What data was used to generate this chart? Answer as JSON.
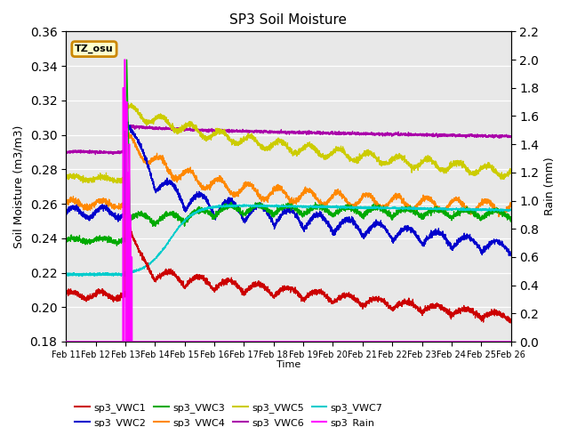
{
  "title": "SP3 Soil Moisture",
  "xlabel": "Time",
  "ylabel_left": "Soil Moisture (m3/m3)",
  "ylabel_right": "Rain (mm)",
  "ylim_left": [
    0.18,
    0.36
  ],
  "ylim_right": [
    0.0,
    2.2
  ],
  "yticks_left": [
    0.18,
    0.2,
    0.22,
    0.24,
    0.26,
    0.28,
    0.3,
    0.32,
    0.34,
    0.36
  ],
  "yticks_right": [
    0.0,
    0.2,
    0.4,
    0.6,
    0.8,
    1.0,
    1.2,
    1.4,
    1.6,
    1.8,
    2.0,
    2.2
  ],
  "xtick_labels": [
    "Feb 11",
    "Feb 12",
    "Feb 13",
    "Feb 14",
    "Feb 15",
    "Feb 16",
    "Feb 17",
    "Feb 18",
    "Feb 19",
    "Feb 20",
    "Feb 21",
    "Feb 22",
    "Feb 23",
    "Feb 24",
    "Feb 25",
    "Feb 26"
  ],
  "annotation_text": "TZ_osu",
  "annotation_color": "#cc8800",
  "background_color": "#e8e8e8",
  "colors": {
    "sp3_VWC1": "#cc0000",
    "sp3_VWC2": "#0000cc",
    "sp3_VWC3": "#00aa00",
    "sp3_VWC4": "#ff8800",
    "sp3_VWC5": "#cccc00",
    "sp3_VWC6": "#aa00aa",
    "sp3_VWC7": "#00cccc",
    "sp3_Rain": "#ff00ff"
  }
}
